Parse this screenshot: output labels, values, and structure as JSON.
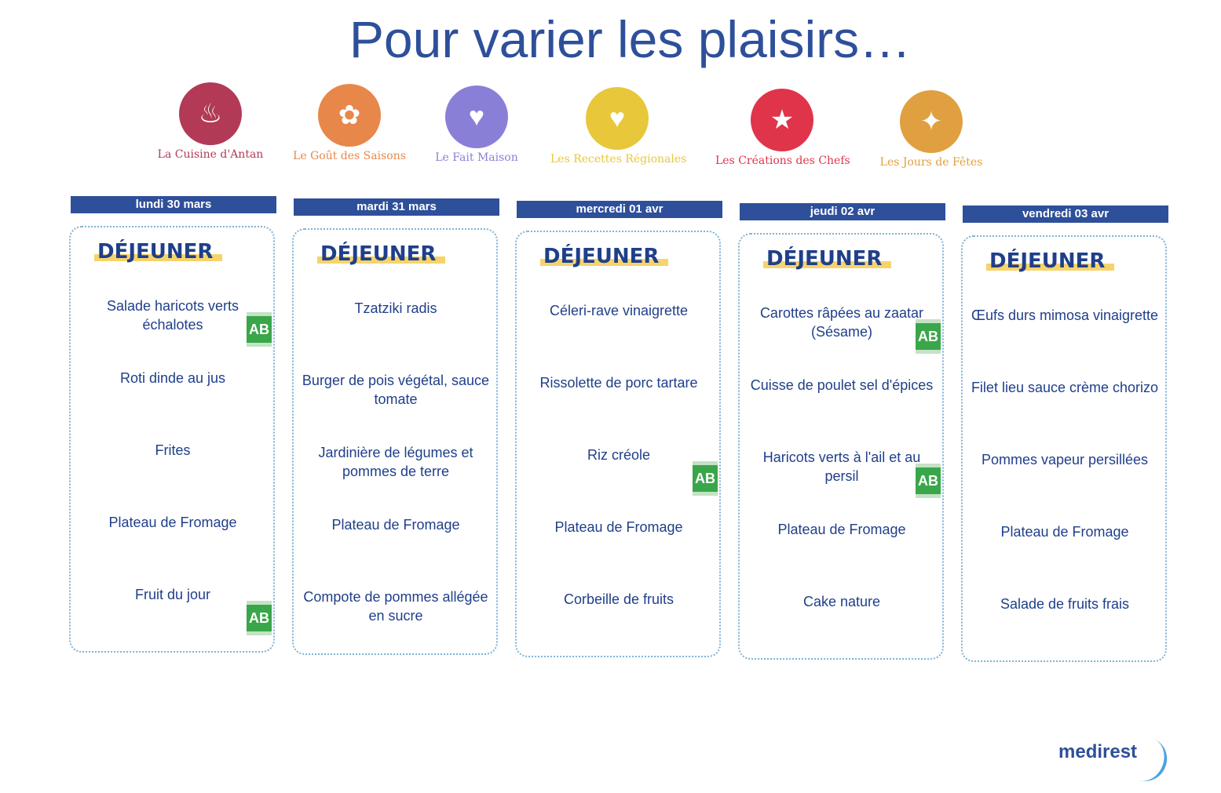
{
  "title": "Pour varier les plaisirs…",
  "themes": [
    {
      "label": "La Cuisine d'Antan",
      "color": "#b23a57",
      "icon": "cooking-pot-icon"
    },
    {
      "label": "Le Goût des Saisons",
      "color": "#e8874a",
      "icon": "seasons-icon"
    },
    {
      "label": "Le Fait Maison",
      "color": "#8a7fd6",
      "icon": "whisk-icon"
    },
    {
      "label": "Les Recettes Régionales",
      "color": "#e8c73a",
      "icon": "france-heart-icon"
    },
    {
      "label": "Les Créations des Chefs",
      "color": "#e0344a",
      "icon": "chef-hat-icon"
    },
    {
      "label": "Les Jours de Fêtes",
      "color": "#e0a040",
      "icon": "party-popper-icon"
    }
  ],
  "meal_label": "DÉJEUNER",
  "organic_label": "AB",
  "days": [
    {
      "date": "lundi 30 mars",
      "items": [
        {
          "name": "Salade haricots verts échalotes",
          "bio": true
        },
        {
          "name": "Roti dinde au jus"
        },
        {
          "name": "Frites"
        },
        {
          "name": "Plateau de Fromage"
        },
        {
          "name": "Fruit du jour",
          "bio": true
        }
      ]
    },
    {
      "date": "mardi 31 mars",
      "items": [
        {
          "name": "Tzatziki radis"
        },
        {
          "name": "Burger de pois végétal, sauce tomate"
        },
        {
          "name": "Jardinière de légumes et pommes de terre"
        },
        {
          "name": "Plateau de Fromage"
        },
        {
          "name": "Compote de pommes allégée en sucre"
        }
      ]
    },
    {
      "date": "mercredi 01 avr",
      "items": [
        {
          "name": "Céleri-rave vinaigrette"
        },
        {
          "name": "Rissolette de porc tartare"
        },
        {
          "name": "Riz créole",
          "bio": true
        },
        {
          "name": "Plateau de Fromage"
        },
        {
          "name": "Corbeille de fruits"
        }
      ]
    },
    {
      "date": "jeudi 02 avr",
      "items": [
        {
          "name": "Carottes râpées au zaatar (Sésame)",
          "bio": true
        },
        {
          "name": "Cuisse de poulet  sel d'épices"
        },
        {
          "name": "Haricots verts à l'ail et au persil",
          "bio": true
        },
        {
          "name": "Plateau de Fromage"
        },
        {
          "name": "Cake nature"
        }
      ]
    },
    {
      "date": "vendredi 03 avr",
      "items": [
        {
          "name": "Œufs durs mimosa vinaigrette"
        },
        {
          "name": "Filet lieu sauce crème chorizo"
        },
        {
          "name": "Pommes vapeur persillées"
        },
        {
          "name": "Plateau de Fromage"
        },
        {
          "name": "Salade de fruits frais"
        }
      ]
    }
  ],
  "brand": "medirest"
}
